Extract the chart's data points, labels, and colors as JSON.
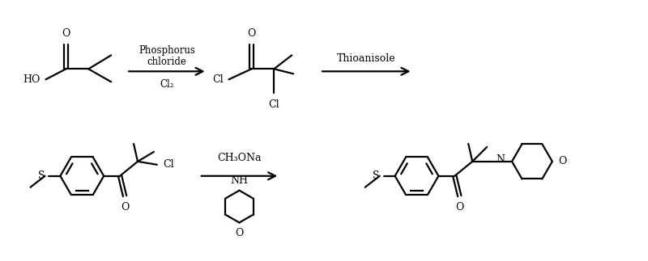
{
  "background_color": "#ffffff",
  "line_color": "#000000",
  "line_width": 1.6,
  "figsize": [
    8.0,
    3.23
  ],
  "dpi": 100,
  "reagent1_lines": [
    "Phosphorus",
    "chloride"
  ],
  "reagent1_sub": "Cl₂",
  "reagent2": "Thioanisole",
  "reagent3": "CH₃ONa",
  "morph_O": "O",
  "morph_NH": "NH"
}
